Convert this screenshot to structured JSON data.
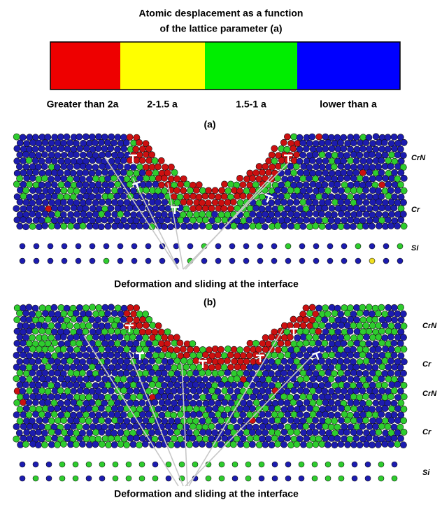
{
  "title": [
    "Atomic desplacement as a function",
    "of the lattice parameter (a)"
  ],
  "legend": [
    {
      "label": "Greater than 2a",
      "color": "#ee0000"
    },
    {
      "label": "2-1.5 a",
      "color": "#ffff00"
    },
    {
      "label": "1.5-1 a",
      "color": "#00ee00"
    },
    {
      "label": "lower than a",
      "color": "#0000ff"
    }
  ],
  "panels": [
    {
      "label": "(a)",
      "layers": [
        "CrN",
        "Cr",
        "Si"
      ],
      "caption": "Deformation and sliding at the interface"
    },
    {
      "label": "(b)",
      "layers": [
        "CrN",
        "Cr",
        "CrN",
        "Cr",
        "Si"
      ],
      "caption": "Deformation and sliding at the interface"
    }
  ]
}
